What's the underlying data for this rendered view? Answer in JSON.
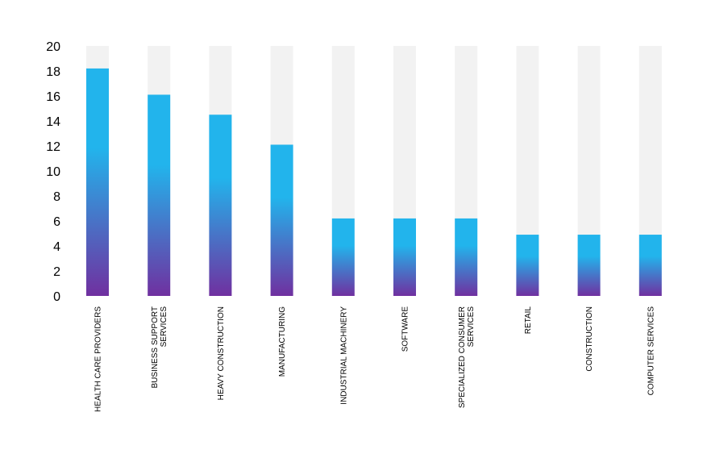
{
  "colors": {
    "track": "#f2f2f2",
    "bar_top": "#22b4ec",
    "bar_bottom": "#7030a0"
  },
  "chart_data": {
    "type": "bar",
    "categories": [
      [
        "HEALTH CARE PROVIDERS"
      ],
      [
        "BUSINESS SUPPORT",
        "SERVICES"
      ],
      [
        "HEAVY CONSTRUCTION"
      ],
      [
        "MANUFACTURING"
      ],
      [
        "INDUSTRIAL MACHINERY"
      ],
      [
        "SOFTWARE"
      ],
      [
        "SPECIALIZED CONSUMER",
        "SERVICES"
      ],
      [
        "RETAIL"
      ],
      [
        "CONSTRUCTION"
      ],
      [
        "COMPUTER SERVICES"
      ]
    ],
    "values": [
      18.2,
      16.1,
      14.5,
      12.1,
      6.2,
      6.2,
      6.2,
      4.9,
      4.9,
      4.9
    ],
    "ylim": [
      0,
      20
    ],
    "yticks": [
      0,
      2,
      4,
      6,
      8,
      10,
      12,
      14,
      16,
      18,
      20
    ],
    "title": "",
    "xlabel": "",
    "ylabel": "",
    "grid": false,
    "legend": "none"
  }
}
